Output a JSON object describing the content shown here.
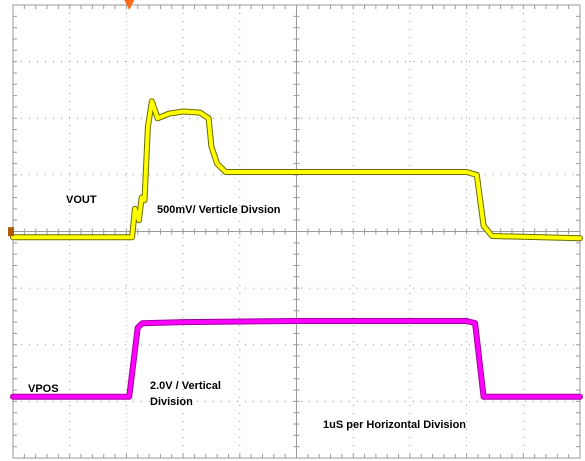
{
  "chart_data": {
    "type": "line",
    "grid": true,
    "colors": {
      "vout": "#ffff00",
      "vout_edge": "#6b6b00",
      "vpos": "#ff00ff",
      "vpos_edge": "#a000a0",
      "grid": "#9a9a9a",
      "trigger_marker": "#ff6a1a",
      "level_marker": "#b05a00"
    },
    "xlim": [
      0,
      10
    ],
    "ylim": [
      0,
      8
    ],
    "series": [
      {
        "name": "VOUT",
        "points": [
          [
            0,
            3.9
          ],
          [
            2.1,
            3.9
          ],
          [
            2.15,
            4.4
          ],
          [
            2.22,
            4.2
          ],
          [
            2.27,
            4.6
          ],
          [
            2.32,
            4.55
          ],
          [
            2.38,
            5.85
          ],
          [
            2.45,
            6.3
          ],
          [
            2.55,
            6.0
          ],
          [
            2.75,
            6.08
          ],
          [
            3.0,
            6.12
          ],
          [
            3.3,
            6.1
          ],
          [
            3.45,
            6.0
          ],
          [
            3.5,
            5.5
          ],
          [
            3.6,
            5.2
          ],
          [
            3.75,
            5.05
          ],
          [
            5.5,
            5.05
          ],
          [
            8.0,
            5.05
          ],
          [
            8.18,
            5.0
          ],
          [
            8.3,
            4.1
          ],
          [
            8.45,
            3.92
          ],
          [
            10,
            3.88
          ]
        ]
      },
      {
        "name": "VPOS",
        "points": [
          [
            0,
            1.08
          ],
          [
            2.05,
            1.08
          ],
          [
            2.2,
            2.3
          ],
          [
            2.28,
            2.38
          ],
          [
            3.0,
            2.4
          ],
          [
            5.0,
            2.42
          ],
          [
            8.0,
            2.42
          ],
          [
            8.15,
            2.38
          ],
          [
            8.3,
            1.08
          ],
          [
            10,
            1.08
          ]
        ]
      }
    ],
    "annotations": [
      {
        "key": "vout_label",
        "text": "VOUT"
      },
      {
        "key": "vout_scale",
        "text": "500mV/ Verticle Divsion"
      },
      {
        "key": "vpos_label",
        "text": "VPOS"
      },
      {
        "key": "vpos_scale_line1",
        "text": "2.0V / Vertical"
      },
      {
        "key": "vpos_scale_line2",
        "text": "Division"
      },
      {
        "key": "time_scale",
        "text": "1uS per Horizontal Division"
      }
    ]
  }
}
